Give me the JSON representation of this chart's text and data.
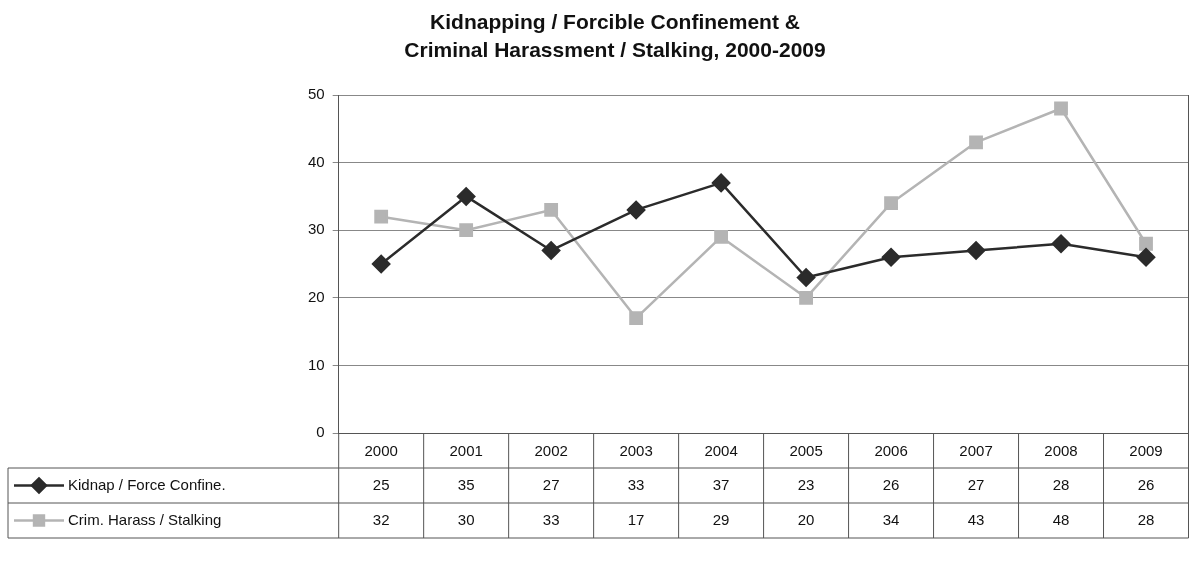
{
  "chart_data": {
    "type": "line",
    "title": "Kidnapping / Forcible Confinement & Criminal Harassment / Stalking, 2000-2009",
    "categories": [
      "2000",
      "2001",
      "2002",
      "2003",
      "2004",
      "2005",
      "2006",
      "2007",
      "2008",
      "2009"
    ],
    "series": [
      {
        "name": "Kidnap / Force Confine.",
        "color": "#2b2b2b",
        "marker": "diamond",
        "values": [
          25,
          35,
          27,
          33,
          37,
          23,
          26,
          27,
          28,
          26
        ]
      },
      {
        "name": "Crim. Harass / Stalking",
        "color": "#b4b4b4",
        "marker": "square",
        "values": [
          32,
          30,
          33,
          17,
          29,
          20,
          34,
          43,
          48,
          28
        ]
      }
    ],
    "ylim": [
      0,
      50
    ],
    "yticks": [
      0,
      10,
      20,
      30,
      40,
      50
    ],
    "grid": "y",
    "legend": "bottom",
    "data_labels": true,
    "line_style": "solid"
  }
}
